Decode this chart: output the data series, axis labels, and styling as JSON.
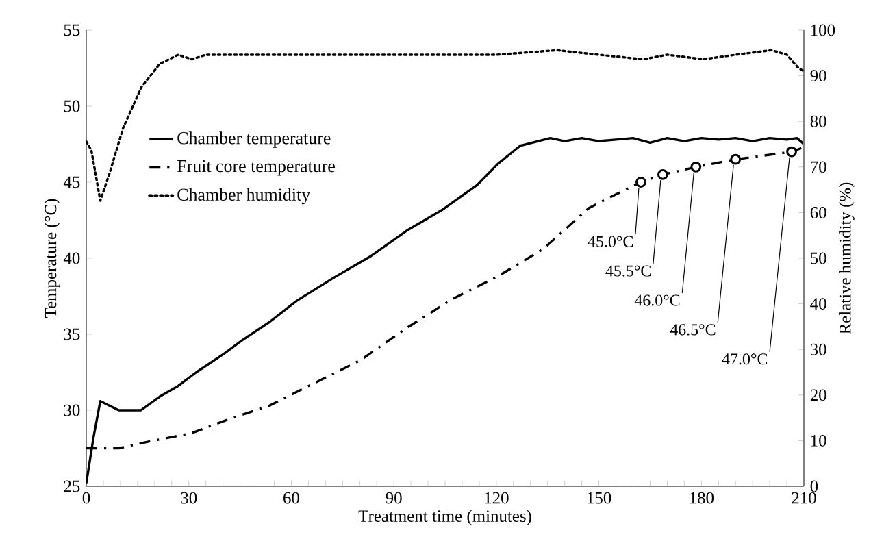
{
  "chart_data": {
    "type": "line",
    "xlabel": "Treatment time (minutes)",
    "ylabel": "Temperature (°C)",
    "y2label": "Relative humidity (%)",
    "xlim": [
      0,
      210
    ],
    "xticks": [
      0,
      {
        "value": 5,
        "label": null
      },
      {
        "value": 10,
        "label": null
      },
      {
        "value": 15,
        "label": null
      },
      {
        "value": 20,
        "label": null
      },
      {
        "value": 25,
        "label": null
      },
      30,
      {
        "value": 35,
        "label": null
      },
      {
        "value": 40,
        "label": null
      },
      {
        "value": 45,
        "label": null
      },
      {
        "value": 50,
        "label": null
      },
      {
        "value": 55,
        "label": null
      },
      60,
      {
        "value": 65,
        "label": null
      },
      {
        "value": 70,
        "label": null
      },
      {
        "value": 75,
        "label": null
      },
      {
        "value": 80,
        "label": null
      },
      {
        "value": 85,
        "label": null
      },
      90,
      {
        "value": 95,
        "label": null
      },
      {
        "value": 100,
        "label": null
      },
      {
        "value": 105,
        "label": null
      },
      {
        "value": 110,
        "label": null
      },
      {
        "value": 115,
        "label": null
      },
      120,
      {
        "value": 125,
        "label": null
      },
      {
        "value": 130,
        "label": null
      },
      {
        "value": 135,
        "label": null
      },
      {
        "value": 140,
        "label": null
      },
      {
        "value": 145,
        "label": null
      },
      150,
      {
        "value": 155,
        "label": null
      },
      {
        "value": 160,
        "label": null
      },
      {
        "value": 165,
        "label": null
      },
      {
        "value": 170,
        "label": null
      },
      {
        "value": 175,
        "label": null
      },
      180,
      {
        "value": 185,
        "label": null
      },
      {
        "value": 190,
        "label": null
      },
      {
        "value": 195,
        "label": null
      },
      {
        "value": 200,
        "label": null
      },
      {
        "value": 205,
        "label": null
      },
      210
    ],
    "ylim": [
      25,
      55
    ],
    "yticks": [
      25,
      30,
      35,
      40,
      45,
      50,
      55
    ],
    "y2lim": [
      0,
      100
    ],
    "y2ticks": [
      0,
      10,
      20,
      30,
      40,
      50,
      60,
      70,
      80,
      90,
      100
    ],
    "legend": "top left",
    "marker": "none",
    "series": [
      {
        "name": "Chamber temperature",
        "color": "#000000",
        "line_style": "solid",
        "x": [
          0,
          2.1,
          4.1,
          9.5,
          16,
          21.5,
          26.9,
          32.2,
          40.2,
          45.6,
          53.6,
          61.6,
          72.3,
          83,
          93.7,
          104.3,
          114.3,
          120.4,
          127,
          135.8,
          140,
          145,
          150,
          155,
          160,
          165,
          170,
          175,
          180,
          185,
          190,
          195,
          200,
          205,
          208,
          210
        ],
        "values": [
          25.2,
          28.2,
          30.6,
          30.0,
          30.0,
          30.9,
          31.6,
          32.5,
          33.7,
          34.6,
          35.8,
          37.2,
          38.7,
          40.1,
          41.8,
          43.2,
          44.8,
          46.2,
          47.4,
          47.9,
          47.7,
          47.9,
          47.7,
          47.8,
          47.9,
          47.6,
          47.9,
          47.7,
          47.9,
          47.8,
          47.9,
          47.7,
          47.9,
          47.8,
          47.9,
          47.5
        ]
      },
      {
        "name": "Fruit core temperature",
        "color": "#000000",
        "line_style": "dashdot",
        "x": [
          0,
          9.5,
          17.5,
          30.9,
          41.6,
          53.6,
          66.9,
          80.3,
          93.7,
          107,
          120.4,
          133.7,
          147.1,
          155,
          162.3,
          168.7,
          178.4,
          190,
          200,
          206.4,
          210
        ],
        "values": [
          27.5,
          27.5,
          27.9,
          28.5,
          29.4,
          30.3,
          31.8,
          33.3,
          35.4,
          37.3,
          38.8,
          40.6,
          43.3,
          44.2,
          45.0,
          45.5,
          46.0,
          46.5,
          46.8,
          47.0,
          47.3
        ]
      },
      {
        "name": "Chamber humidity",
        "color": "#000000",
        "line_style": "dotted",
        "axis": "y2",
        "x": [
          0,
          1.5,
          4.1,
          6.8,
          10.8,
          16.2,
          21.5,
          26.9,
          30.9,
          34.9,
          60,
          90,
          120,
          137.7,
          150,
          163,
          170,
          180.5,
          190,
          200.5,
          205,
          208.5,
          210
        ],
        "values": [
          75.6,
          73.6,
          62.6,
          68.6,
          78.6,
          87.6,
          92.6,
          94.6,
          93.6,
          94.6,
          94.6,
          94.6,
          94.6,
          95.6,
          94.6,
          93.6,
          94.6,
          93.6,
          94.6,
          95.6,
          94.6,
          91.6,
          91.0
        ]
      }
    ],
    "annotations": [
      {
        "text": "45.0°C",
        "x": 162.3,
        "y": 45.0
      },
      {
        "text": "45.5°C",
        "x": 168.7,
        "y": 45.5
      },
      {
        "text": "46.0°C",
        "x": 178.4,
        "y": 46.0
      },
      {
        "text": "46.5°C",
        "x": 190,
        "y": 46.5
      },
      {
        "text": "47.0°C",
        "x": 206.4,
        "y": 47.0
      }
    ]
  }
}
